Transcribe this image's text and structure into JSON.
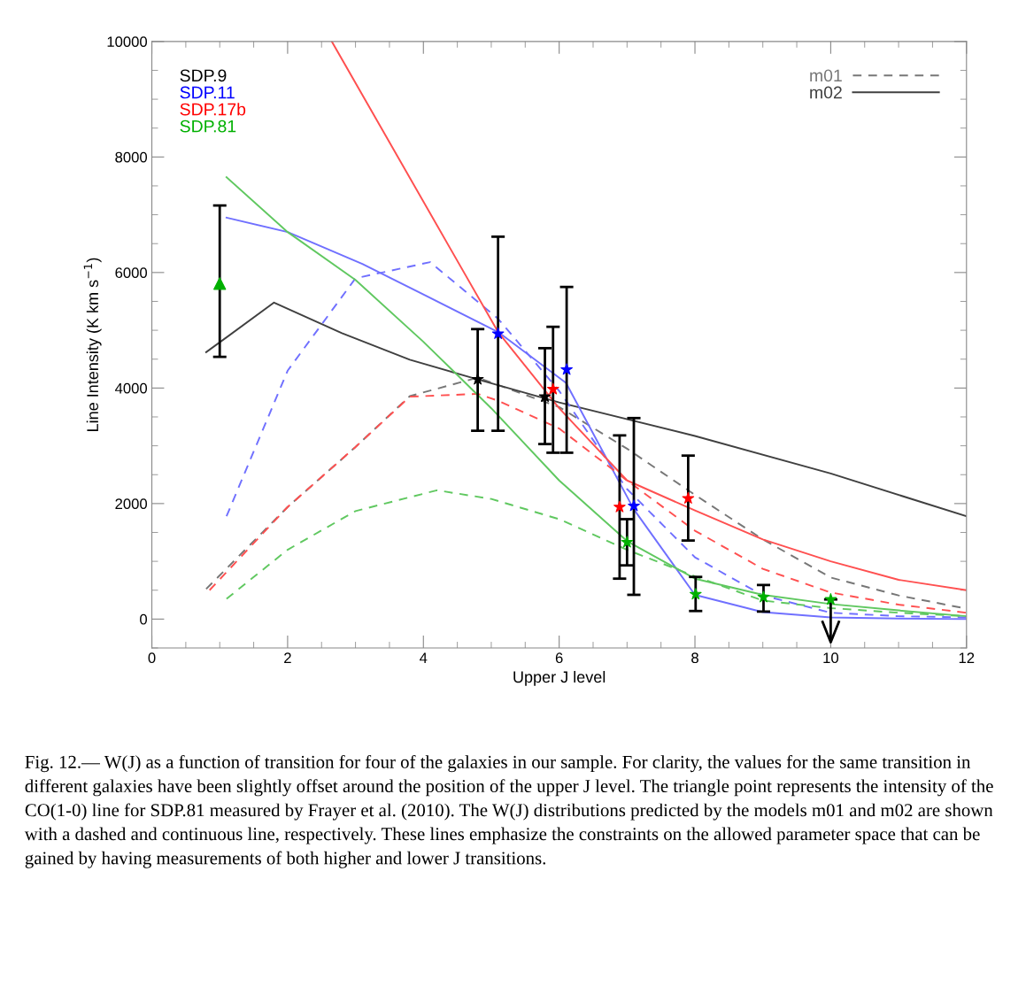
{
  "chart_data": {
    "type": "line",
    "xlabel": "Upper J level",
    "ylabel": "Line Intensity (K km s$^{−1}$)",
    "xlim": [
      0,
      12
    ],
    "xticks": [
      0,
      2,
      4,
      6,
      8,
      10,
      12
    ],
    "ylim": [
      -500,
      10000
    ],
    "yticks": [
      0,
      2000,
      4000,
      6000,
      8000,
      10000
    ],
    "grid": false,
    "legend": "top left",
    "series": [
      {
        "name": "m01",
        "color": "#777777",
        "line_style": "dashed",
        "x": [
          0.8,
          2,
          3,
          3.8,
          4.8,
          6,
          7,
          8,
          9,
          10,
          11,
          12
        ],
        "values": [
          520,
          1940,
          2980,
          3860,
          4180,
          3670,
          2950,
          2150,
          1380,
          720,
          410,
          180
        ]
      },
      {
        "name": "m02",
        "color": "#404040",
        "line_style": "solid",
        "x": [
          0.8,
          1.8,
          2.8,
          3.8,
          4.8,
          6,
          8,
          10,
          12
        ],
        "values": [
          4620,
          5480,
          4950,
          4490,
          4150,
          3750,
          3170,
          2520,
          1780
        ]
      },
      {
        "type": "line",
        "color": "#7070ff",
        "line_style": "dashed",
        "x": [
          1.1,
          2,
          3,
          4.1,
          5.1,
          6,
          7,
          8,
          9,
          10,
          11,
          12
        ],
        "values": [
          1780,
          4300,
          5900,
          6180,
          5200,
          3950,
          2250,
          1070,
          410,
          110,
          50,
          30
        ]
      },
      {
        "type": "line",
        "color": "#7070ff",
        "line_style": "solid",
        "x": [
          1.1,
          2,
          3.1,
          4,
          5.1,
          6.1,
          7.1,
          8,
          9,
          10,
          11,
          12
        ],
        "values": [
          6950,
          6700,
          6150,
          5620,
          4970,
          4090,
          1900,
          420,
          120,
          30,
          10,
          0
        ]
      },
      {
        "type": "line",
        "color": "#ff5050",
        "line_style": "dashed",
        "x": [
          0.85,
          2,
          3,
          3.8,
          4.8,
          5.1,
          6,
          7,
          8,
          9,
          10,
          11,
          12
        ],
        "values": [
          500,
          1940,
          2980,
          3850,
          3900,
          3780,
          3300,
          2400,
          1530,
          870,
          460,
          250,
          110
        ]
      },
      {
        "type": "line",
        "color": "#ff5050",
        "line_style": "solid",
        "x": [
          2.65,
          5.1,
          6,
          7,
          8,
          9,
          10,
          11,
          12
        ],
        "values": [
          10000,
          4970,
          3650,
          2400,
          1880,
          1380,
          1000,
          680,
          500
        ]
      },
      {
        "type": "line",
        "color": "#60c860",
        "line_style": "dashed",
        "x": [
          1.1,
          2,
          3,
          4.2,
          5,
          6,
          7,
          8,
          9,
          10,
          11,
          12
        ],
        "values": [
          350,
          1200,
          1870,
          2230,
          2080,
          1730,
          1200,
          740,
          320,
          190,
          110,
          50
        ]
      },
      {
        "type": "line",
        "color": "#60c860",
        "line_style": "solid",
        "x": [
          1.1,
          2,
          3,
          4,
          5,
          6,
          7,
          8,
          9,
          10,
          11,
          12
        ],
        "values": [
          7650,
          6700,
          5870,
          4800,
          3650,
          2400,
          1350,
          700,
          420,
          260,
          150,
          50
        ]
      },
      {
        "type": "scatter",
        "name": "SDP.9",
        "color": "#000000",
        "marker": "star",
        "x": [
          4.8,
          5.79
        ],
        "values": [
          4150,
          3850
        ],
        "errors": [
          [
            3260,
            5020
          ],
          [
            3030,
            4690
          ]
        ]
      },
      {
        "type": "scatter",
        "name": "SDP.11",
        "color": "#0000ff",
        "marker": "star",
        "x": [
          5.1,
          6.11,
          7.1
        ],
        "values": [
          4940,
          4320,
          1960
        ],
        "errors": [
          [
            3260,
            6620
          ],
          [
            2880,
            5750
          ],
          [
            420,
            3480
          ]
        ]
      },
      {
        "type": "scatter",
        "name": "SDP.17b",
        "color": "#ff0000",
        "marker": "star",
        "x": [
          5.91,
          6.89,
          7.9
        ],
        "values": [
          3980,
          1940,
          2090
        ],
        "errors": [
          [
            2880,
            5060
          ],
          [
            700,
            3180
          ],
          [
            1360,
            2830
          ]
        ]
      },
      {
        "type": "scatter",
        "name": "SDP.81",
        "color": "#00b000",
        "marker": "star",
        "x": [
          7.0,
          8.01,
          9.01,
          10.0
        ],
        "values": [
          1330,
          430,
          380,
          340
        ],
        "errors": [
          [
            930,
            1730
          ],
          [
            140,
            730
          ],
          [
            130,
            590
          ],
          [
            -400,
            340
          ]
        ]
      },
      {
        "type": "scatter",
        "color": "#00b000",
        "marker": "triangle",
        "x": [
          1
        ],
        "values": [
          5810
        ],
        "errors": [
          [
            4540,
            7160
          ]
        ]
      }
    ],
    "annotations": [
      "Fig. 12.— W(J) as a function of transition for four of the galaxies in our sample. For clarity, the values for the same transition in different galaxies have been slightly offset around the position of the upper J level. The triangle point represents the intensity of the CO(1-0) line for SDP.81 measured by Frayer et al. (2010). The W(J) distributions predicted by the models m01 and m02 are shown with a dashed and continuous line, respectively. These lines emphasize the constraints on the allowed parameter space that can be gained by having measurements of both higher and lower J transitions."
    ]
  }
}
